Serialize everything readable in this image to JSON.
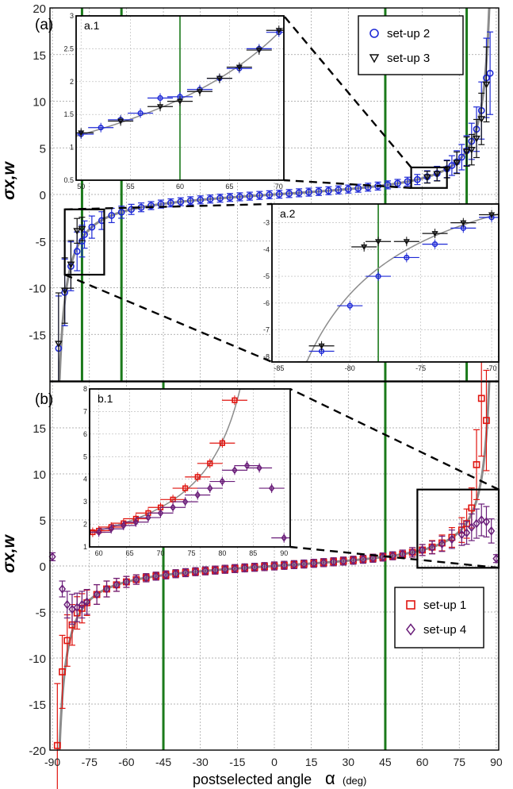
{
  "figure": {
    "xlabel": "postselected angle",
    "xlabel_symbol": "α",
    "xlabel_unit": "(deg)",
    "colors": {
      "setup1": "#e0140f",
      "setup2": "#1f2ad6",
      "setup3": "#111111",
      "setup4": "#6b1f7a",
      "theory": "#8c8c8c",
      "vline": "#1b7a1b",
      "grid": "#9a9a9a"
    }
  },
  "chart_data": [
    {
      "id": "a",
      "type": "scatter",
      "panel_label": "(a)",
      "ylabel": "σx,w",
      "xlim": [
        -91,
        91
      ],
      "ylim": [
        -20,
        20
      ],
      "xticks": [
        -90,
        -75,
        -60,
        -45,
        -30,
        -15,
        0,
        15,
        30,
        45,
        60,
        75,
        90
      ],
      "yticks": [
        -15,
        -10,
        -5,
        0,
        5,
        10,
        15,
        20
      ],
      "grid": true,
      "legend_position": "top-right",
      "vlines": [
        -78,
        -62,
        45,
        78
      ],
      "theory_curve": "tan",
      "series": [
        {
          "name": "set-up 2",
          "marker": "circle",
          "color": "#1f2ad6",
          "x": [
            -87.5,
            -85,
            -82.5,
            -80,
            -78,
            -77,
            -74,
            -70,
            -66,
            -62,
            -58,
            -54,
            -50,
            -46,
            -42,
            -38,
            -34,
            -30,
            -26,
            -22,
            -18,
            -14,
            -10,
            -6,
            -2,
            2,
            6,
            10,
            14,
            18,
            22,
            26,
            30,
            34,
            38,
            42,
            46,
            50,
            54,
            58,
            62,
            66,
            70,
            72,
            74,
            76,
            78,
            80,
            82,
            84,
            86,
            87.5
          ],
          "y": [
            -16.5,
            -10.5,
            -7.7,
            -6.1,
            -5.0,
            -4.3,
            -3.5,
            -2.8,
            -2.25,
            -1.9,
            -1.6,
            -1.38,
            -1.19,
            -1.03,
            -0.9,
            -0.78,
            -0.67,
            -0.58,
            -0.49,
            -0.4,
            -0.32,
            -0.25,
            -0.18,
            -0.1,
            -0.03,
            0.03,
            0.1,
            0.18,
            0.25,
            0.32,
            0.4,
            0.49,
            0.58,
            0.67,
            0.78,
            0.9,
            1.03,
            1.19,
            1.38,
            1.6,
            1.9,
            2.25,
            2.75,
            3.1,
            3.5,
            4.0,
            4.7,
            5.7,
            7.0,
            9.0,
            12.5,
            13.0
          ]
        },
        {
          "name": "set-up 3",
          "marker": "triangle-down",
          "color": "#111111",
          "x": [
            -87.5,
            -85,
            -82.5,
            -80,
            -78,
            62,
            66,
            70,
            74,
            78,
            80,
            82,
            84,
            86
          ],
          "y": [
            -16.0,
            -10.3,
            -7.5,
            -3.9,
            -3.7,
            1.85,
            2.2,
            2.7,
            3.4,
            4.6,
            4.8,
            6.0,
            8.1,
            11.8
          ]
        }
      ],
      "insets": [
        {
          "id": "a.1",
          "label": "a.1",
          "xlim": [
            49.5,
            70.5
          ],
          "ylim": [
            0.5,
            3
          ],
          "xticks": [
            50,
            55,
            60,
            65,
            70
          ],
          "yticks": [
            0.5,
            1,
            1.5,
            2,
            2.5,
            3
          ],
          "vline": 60,
          "zoom_box": {
            "x": [
              55.5,
              70
            ],
            "y": [
              0.7,
              2.9
            ]
          },
          "series": [
            {
              "ref": "set-up 2",
              "marker": "circle",
              "color": "#1f2ad6",
              "x": [
                50,
                52,
                54,
                56,
                58,
                60,
                62,
                64,
                66,
                68,
                70
              ],
              "y": [
                1.2,
                1.3,
                1.42,
                1.52,
                1.75,
                1.77,
                1.88,
                2.05,
                2.2,
                2.5,
                2.75
              ]
            },
            {
              "ref": "set-up 3",
              "marker": "triangle-down",
              "color": "#111111",
              "x": [
                50,
                54,
                58,
                60,
                62,
                64,
                66,
                68,
                70
              ],
              "y": [
                1.22,
                1.4,
                1.62,
                1.7,
                1.85,
                2.05,
                2.22,
                2.48,
                2.78
              ]
            }
          ]
        },
        {
          "id": "a.2",
          "label": "a.2",
          "xlim": [
            -85.5,
            -69.5
          ],
          "ylim": [
            -8.2,
            -2.3
          ],
          "xticks": [
            -85,
            -80,
            -75,
            -70
          ],
          "yticks": [
            -8,
            -7,
            -6,
            -5,
            -4,
            -3
          ],
          "vline": -78,
          "zoom_box": {
            "x": [
              -85,
              -69
            ],
            "y": [
              -8.6,
              -1.6
            ]
          },
          "series": [
            {
              "ref": "set-up 2",
              "marker": "circle",
              "color": "#1f2ad6",
              "x": [
                -82,
                -80,
                -78,
                -76,
                -74,
                -72,
                -70
              ],
              "y": [
                -7.8,
                -6.1,
                -5.0,
                -4.3,
                -3.8,
                -3.2,
                -2.8
              ]
            },
            {
              "ref": "set-up 3",
              "marker": "triangle-down",
              "color": "#111111",
              "x": [
                -82,
                -79,
                -78,
                -76,
                -74,
                -72,
                -70
              ],
              "y": [
                -7.6,
                -3.9,
                -3.7,
                -3.7,
                -3.4,
                -3.0,
                -2.7
              ]
            }
          ]
        }
      ]
    },
    {
      "id": "b",
      "type": "scatter",
      "panel_label": "(b)",
      "ylabel": "σx,w",
      "xlim": [
        -91,
        91
      ],
      "ylim": [
        -20,
        20
      ],
      "xticks": [
        -90,
        -75,
        -60,
        -45,
        -30,
        -15,
        0,
        15,
        30,
        45,
        60,
        75,
        90
      ],
      "yticks": [
        -20,
        -15,
        -10,
        -5,
        0,
        5,
        10,
        15
      ],
      "grid": true,
      "legend_position": "bottom-right",
      "vlines": [
        -45,
        45
      ],
      "theory_curve": "tan",
      "series": [
        {
          "name": "set-up 1",
          "marker": "square",
          "color": "#e0140f",
          "x": [
            -88,
            -86,
            -84,
            -82,
            -80,
            -78,
            -76,
            -72,
            -68,
            -64,
            -60,
            -56,
            -52,
            -48,
            -44,
            -40,
            -36,
            -32,
            -28,
            -24,
            -20,
            -16,
            -12,
            -8,
            -4,
            0,
            4,
            8,
            12,
            16,
            20,
            24,
            28,
            32,
            36,
            40,
            44,
            48,
            52,
            56,
            60,
            64,
            68,
            72,
            76,
            78,
            80,
            82,
            84,
            86
          ],
          "y": [
            -19.5,
            -11.5,
            -8.1,
            -6.4,
            -5.1,
            -4.6,
            -4.0,
            -3.1,
            -2.5,
            -2.05,
            -1.73,
            -1.48,
            -1.28,
            -1.11,
            -0.97,
            -0.84,
            -0.73,
            -0.62,
            -0.53,
            -0.45,
            -0.36,
            -0.29,
            -0.21,
            -0.14,
            -0.07,
            0.0,
            0.07,
            0.14,
            0.21,
            0.29,
            0.36,
            0.45,
            0.53,
            0.62,
            0.73,
            0.84,
            0.97,
            1.11,
            1.28,
            1.48,
            1.73,
            2.05,
            2.5,
            3.1,
            3.9,
            4.6,
            6.3,
            11.0,
            18.2,
            15.8
          ]
        },
        {
          "name": "set-up 4",
          "marker": "diamond",
          "color": "#6b1f7a",
          "x": [
            -90,
            -86,
            -84,
            -82,
            -80,
            -78,
            -76,
            -72,
            -68,
            -64,
            -60,
            -56,
            -52,
            -48,
            -44,
            -40,
            -36,
            -32,
            -28,
            -24,
            -20,
            -16,
            -12,
            -8,
            -4,
            0,
            4,
            8,
            12,
            16,
            20,
            24,
            28,
            32,
            36,
            40,
            44,
            48,
            52,
            56,
            60,
            64,
            68,
            72,
            76,
            78,
            80,
            82,
            84,
            86,
            88,
            90
          ],
          "y": [
            1.0,
            -2.5,
            -4.2,
            -4.7,
            -4.5,
            -4.2,
            -3.9,
            -3.1,
            -2.5,
            -2.05,
            -1.73,
            -1.48,
            -1.28,
            -1.11,
            -0.97,
            -0.84,
            -0.73,
            -0.62,
            -0.53,
            -0.45,
            -0.36,
            -0.29,
            -0.21,
            -0.14,
            -0.07,
            0.0,
            0.07,
            0.14,
            0.21,
            0.29,
            0.36,
            0.45,
            0.53,
            0.62,
            0.73,
            0.84,
            0.97,
            1.11,
            1.28,
            1.48,
            1.73,
            2.0,
            2.4,
            2.9,
            3.4,
            3.6,
            4.2,
            4.6,
            5.0,
            4.8,
            3.8,
            0.8
          ]
        }
      ],
      "insets": [
        {
          "id": "b.1",
          "label": "b.1",
          "xlim": [
            58.5,
            91
          ],
          "ylim": [
            1,
            8
          ],
          "xticks": [
            60,
            65,
            70,
            75,
            80,
            85,
            90
          ],
          "yticks": [
            1,
            2,
            3,
            4,
            5,
            6,
            7,
            8
          ],
          "zoom_box": {
            "x": [
              58,
              91
            ],
            "y": [
              -0.2,
              8.3
            ]
          },
          "series": [
            {
              "ref": "set-up 1",
              "marker": "square",
              "color": "#e0140f",
              "x": [
                59,
                60,
                62,
                64,
                66,
                68,
                70,
                72,
                74,
                76,
                78,
                80,
                82
              ],
              "y": [
                1.65,
                1.72,
                1.88,
                2.05,
                2.25,
                2.5,
                2.75,
                3.1,
                3.6,
                4.1,
                4.7,
                5.6,
                7.5
              ]
            },
            {
              "ref": "set-up 4",
              "marker": "diamond",
              "color": "#6b1f7a",
              "x": [
                60,
                62,
                64,
                66,
                68,
                70,
                72,
                74,
                76,
                78,
                80,
                82,
                84,
                86,
                88,
                90
              ],
              "y": [
                1.65,
                1.8,
                1.95,
                2.1,
                2.3,
                2.5,
                2.75,
                3.0,
                3.3,
                3.6,
                3.9,
                4.4,
                4.6,
                4.5,
                3.6,
                1.4
              ]
            }
          ]
        }
      ]
    }
  ]
}
